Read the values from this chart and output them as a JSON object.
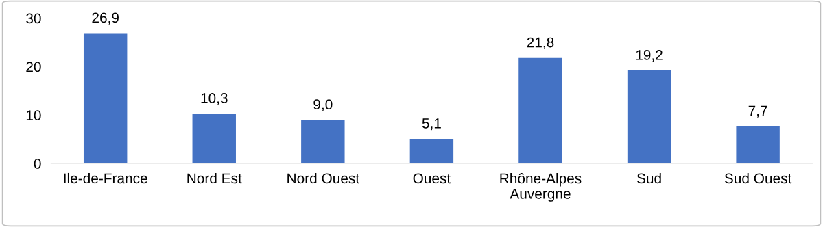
{
  "chart_data": {
    "type": "bar",
    "categories": [
      "Ile-de-France",
      "Nord Est",
      "Nord Ouest",
      "Ouest",
      "Rhône-Alpes\nAuvergne",
      "Sud",
      "Sud Ouest"
    ],
    "values": [
      26.9,
      10.3,
      9.0,
      5.1,
      21.8,
      19.2,
      7.7
    ],
    "value_labels": [
      "26,9",
      "10,3",
      "9,0",
      "5,1",
      "21,8",
      "19,2",
      "7,7"
    ],
    "color": "#4472c4",
    "ylim": [
      0,
      30
    ],
    "yticks": [
      0,
      10,
      20,
      30
    ],
    "grid": false,
    "legend": false
  }
}
